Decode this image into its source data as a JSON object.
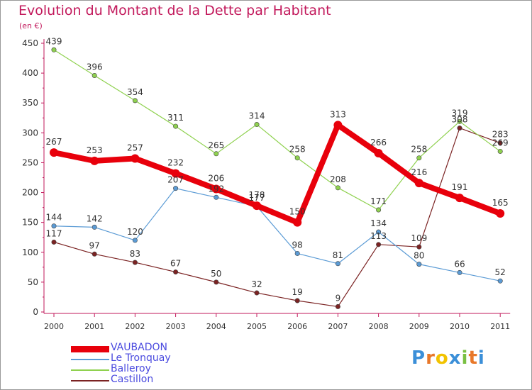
{
  "header": {
    "title": "Evolution du Montant de la Dette par Habitant",
    "unit": "(en €)"
  },
  "logo": {
    "text": "Proxiti",
    "colors": [
      "#3b8fd8",
      "#e8782a",
      "#f2c300",
      "#3b8fd8",
      "#7ac043",
      "#e8782a",
      "#3b8fd8"
    ]
  },
  "chart_data": {
    "type": "line",
    "categories": [
      "2000",
      "2001",
      "2002",
      "2003",
      "2004",
      "2005",
      "2006",
      "2007",
      "2008",
      "2009",
      "2010",
      "2011"
    ],
    "ylim": [
      0,
      450
    ],
    "yticks": [
      0,
      50,
      100,
      150,
      200,
      250,
      300,
      350,
      400,
      450
    ],
    "grid": false,
    "legend_position": "bottom-left",
    "series": [
      {
        "name": "VAUBADON",
        "color": "#e8000b",
        "values": [
          267,
          253,
          257,
          232,
          206,
          178,
          150,
          313,
          266,
          216,
          191,
          165
        ]
      },
      {
        "name": "Le Tronquay",
        "color": "#5b9bd5",
        "values": [
          144,
          142,
          120,
          207,
          192,
          177,
          98,
          81,
          134,
          80,
          66,
          52
        ]
      },
      {
        "name": "Balleroy",
        "color": "#8fd14f",
        "values": [
          439,
          396,
          354,
          311,
          265,
          314,
          258,
          208,
          171,
          258,
          319,
          269
        ]
      },
      {
        "name": "Castillon",
        "color": "#7b2323",
        "values": [
          117,
          97,
          83,
          67,
          50,
          32,
          19,
          9,
          113,
          109,
          308,
          283
        ]
      }
    ]
  }
}
